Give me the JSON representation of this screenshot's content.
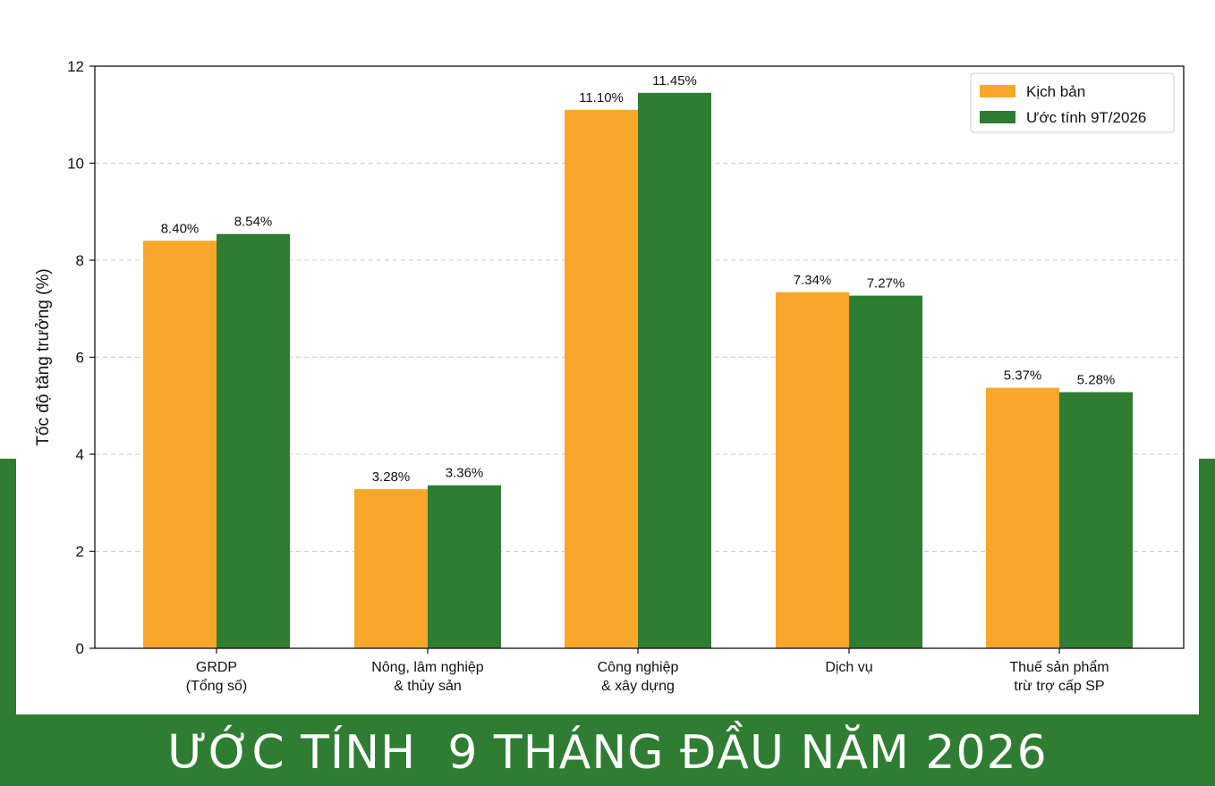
{
  "banner": {
    "title": "ƯỚC TÍNH  9 THÁNG ĐẦU NĂM 2026"
  },
  "colors": {
    "scenario": "#f9a72b",
    "estimate": "#2e7d32",
    "frame": "#2e7d32"
  },
  "chart_data": {
    "type": "bar",
    "title": "",
    "xlabel": "",
    "ylabel": "Tốc độ tăng trưởng (%)",
    "ylim": [
      0,
      12
    ],
    "yticks": [
      0,
      2,
      4,
      6,
      8,
      10,
      12
    ],
    "grid": "horizontal-dashed",
    "legend_position": "top-right",
    "categories": [
      [
        "GRDP",
        "(Tổng số)"
      ],
      [
        "Nông, lâm nghiệp",
        "& thủy sản"
      ],
      [
        "Công nghiệp",
        "& xây dựng"
      ],
      [
        "Dịch vụ"
      ],
      [
        "Thuế sản phẩm",
        "trừ trợ cấp SP"
      ]
    ],
    "series": [
      {
        "name": "Kịch bản",
        "color": "#f9a72b",
        "values": [
          8.4,
          3.28,
          11.1,
          7.34,
          5.37
        ],
        "labels": [
          "8.40%",
          "3.28%",
          "11.10%",
          "7.34%",
          "5.37%"
        ]
      },
      {
        "name": "Ước tính 9T/2026",
        "color": "#2e7d32",
        "values": [
          8.54,
          3.36,
          11.45,
          7.27,
          5.28
        ],
        "labels": [
          "8.54%",
          "3.36%",
          "11.45%",
          "7.27%",
          "5.28%"
        ]
      }
    ]
  }
}
